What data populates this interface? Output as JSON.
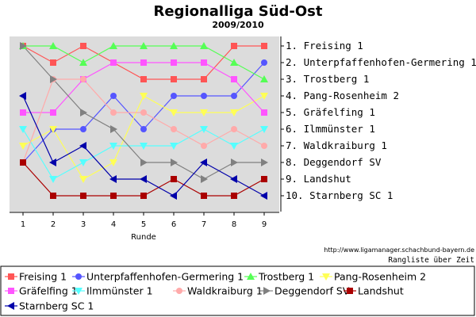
{
  "chart_data": {
    "type": "line",
    "title": "Regionalliga Süd-Ost",
    "subtitle": "2009/2010",
    "xlabel": "Runde",
    "x": [
      1,
      2,
      3,
      4,
      5,
      6,
      7,
      8,
      9
    ],
    "ylim": [
      1,
      10
    ],
    "y_inverted": true,
    "grid": false,
    "right_labels": [
      "1. Freising 1",
      "2. Unterpfaffenhofen-Germering 1",
      "3. Trostberg 1",
      "4. Pang-Rosenheim 2",
      "5. Gräfelfing 1",
      "6. Ilmmünster 1",
      "7. Waldkraiburg 1",
      "8. Deggendorf SV",
      "9. Landshut",
      "10. Starnberg SC 1"
    ],
    "series": [
      {
        "name": "Freising 1",
        "color": "#ff5555",
        "marker": "square",
        "values": [
          1,
          2,
          1,
          2,
          3,
          3,
          3,
          1,
          1
        ]
      },
      {
        "name": "Unterpfaffenhofen-Germering 1",
        "color": "#5555ff",
        "marker": "circle",
        "values": [
          8,
          6,
          6,
          4,
          6,
          4,
          4,
          4,
          2
        ]
      },
      {
        "name": "Trostberg 1",
        "color": "#55ff55",
        "marker": "triangle-up",
        "values": [
          1,
          1,
          2,
          1,
          1,
          1,
          1,
          2,
          3
        ]
      },
      {
        "name": "Pang-Rosenheim 2",
        "color": "#ffff55",
        "marker": "triangle-down",
        "values": [
          7,
          6,
          9,
          8,
          4,
          5,
          5,
          5,
          4
        ]
      },
      {
        "name": "Gräfelfing 1",
        "color": "#ff55ff",
        "marker": "square",
        "values": [
          5,
          5,
          3,
          2,
          2,
          2,
          2,
          3,
          5
        ]
      },
      {
        "name": "Ilmmünster 1",
        "color": "#55ffff",
        "marker": "triangle-down",
        "values": [
          6,
          9,
          8,
          7,
          7,
          7,
          6,
          7,
          6
        ]
      },
      {
        "name": "Waldkraiburg 1",
        "color": "#ffaaaa",
        "marker": "circle",
        "values": [
          8,
          3,
          3,
          5,
          5,
          6,
          7,
          6,
          7
        ]
      },
      {
        "name": "Deggendorf SV",
        "color": "#808080",
        "marker": "triangle-right",
        "values": [
          1,
          3,
          5,
          6,
          8,
          8,
          9,
          8,
          8
        ]
      },
      {
        "name": "Landshut",
        "color": "#aa0000",
        "marker": "square",
        "values": [
          8,
          10,
          10,
          10,
          10,
          9,
          10,
          10,
          9
        ]
      },
      {
        "name": "Starnberg SC 1",
        "color": "#0000aa",
        "marker": "triangle-left",
        "values": [
          4,
          8,
          7,
          9,
          9,
          10,
          8,
          9,
          10
        ]
      }
    ]
  },
  "footer": {
    "url": "http://www.ligamanager.schachbund-bayern.de",
    "caption": "Rangliste über Zeit"
  }
}
